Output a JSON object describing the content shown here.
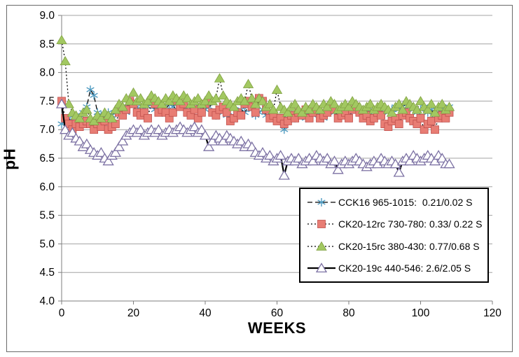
{
  "chart_data": {
    "type": "line-scatter",
    "title": "",
    "xlabel": "WEEKS",
    "ylabel": "pH",
    "xlim": [
      0,
      120
    ],
    "ylim": [
      4.0,
      9.0
    ],
    "x_ticks": [
      "0",
      "20",
      "40",
      "60",
      "80",
      "100",
      "120"
    ],
    "y_ticks": [
      "4.0",
      "4.5",
      "5.0",
      "5.5",
      "6.0",
      "6.5",
      "7.0",
      "7.5",
      "8.0",
      "8.5",
      "9.0"
    ],
    "grid": "horizontal",
    "legend_position": "inside lower-right",
    "x_start": 0,
    "x_step": 1,
    "colors": {
      "gridline": "#a3a3a3",
      "axis": "#7f7f7f",
      "line": "#000000"
    },
    "series": [
      {
        "name": "CCK16 965-1015:  0.21/0.02 S",
        "marker": "asterisk",
        "marker_color": "#4f9bc1",
        "marker_border": "#4f9bc1",
        "line_style": "dashed",
        "line_color": "#000000",
        "values": [
          7.1,
          7.15,
          7.2,
          7.1,
          7.25,
          7.2,
          7.3,
          7.4,
          7.7,
          7.6,
          7.3,
          7.25,
          7.2,
          7.3,
          7.25,
          7.3,
          7.35,
          7.4,
          7.3,
          7.45,
          7.5,
          7.4,
          7.35,
          7.3,
          7.4,
          7.45,
          7.35,
          7.4,
          7.3,
          7.35,
          7.45,
          7.4,
          7.5,
          7.45,
          7.4,
          7.35,
          7.3,
          7.4,
          7.35,
          7.3,
          7.35,
          7.4,
          7.3,
          7.25,
          7.35,
          7.3,
          7.25,
          7.2,
          7.25,
          7.3,
          7.35,
          7.3,
          7.4,
          7.35,
          7.25,
          7.3,
          7.35,
          7.25,
          7.2,
          7.25,
          7.2,
          7.15,
          7.0,
          7.2,
          7.25,
          7.2,
          7.3,
          7.25,
          7.2,
          7.3,
          7.25,
          7.3,
          7.25,
          7.2,
          7.3,
          7.35,
          7.3,
          7.25,
          7.3,
          7.35,
          7.3,
          7.35,
          7.4,
          7.3,
          7.25,
          7.3,
          7.35,
          7.3,
          7.35,
          7.4,
          7.35,
          7.3,
          7.35,
          7.4,
          7.35,
          7.4,
          7.45,
          7.4,
          7.35,
          7.3,
          7.35,
          7.4,
          7.3,
          7.35,
          7.25,
          7.3,
          7.4,
          7.35,
          7.4
        ]
      },
      {
        "name": "CK20-12rc 730-780: 0.33/ 0.22 S",
        "marker": "square",
        "marker_color": "#e87d74",
        "marker_border": "#c0504d",
        "line_style": "dotted",
        "line_color": "#000000",
        "values": [
          7.5,
          7.2,
          7.1,
          7.0,
          7.1,
          7.05,
          7.1,
          7.15,
          7.1,
          7.0,
          7.1,
          7.05,
          7.15,
          7.0,
          7.05,
          7.1,
          7.3,
          7.25,
          7.35,
          7.5,
          7.45,
          7.3,
          7.25,
          7.3,
          7.2,
          7.5,
          7.45,
          7.3,
          7.35,
          7.3,
          7.2,
          7.3,
          7.5,
          7.4,
          7.45,
          7.3,
          7.25,
          7.35,
          7.2,
          7.3,
          7.45,
          7.5,
          7.3,
          7.25,
          7.35,
          7.4,
          7.3,
          7.15,
          7.2,
          7.3,
          7.25,
          7.45,
          7.5,
          7.4,
          7.3,
          7.55,
          7.5,
          7.35,
          7.2,
          7.25,
          7.15,
          7.2,
          7.1,
          7.15,
          7.25,
          7.2,
          7.3,
          7.25,
          7.35,
          7.2,
          7.3,
          7.35,
          7.2,
          7.25,
          7.3,
          7.4,
          7.35,
          7.2,
          7.25,
          7.3,
          7.2,
          7.35,
          7.4,
          7.3,
          7.2,
          7.25,
          7.15,
          7.2,
          7.3,
          7.25,
          7.1,
          7.05,
          7.15,
          7.2,
          7.1,
          7.25,
          7.3,
          7.2,
          7.15,
          7.1,
          7.2,
          7.0,
          7.1,
          7.15,
          7.0,
          7.2,
          7.25,
          7.2,
          7.3
        ]
      },
      {
        "name": "CK20-15rc 380-430: 0.77/0.68 S",
        "marker": "triangle",
        "marker_color": "#a2c861",
        "marker_border": "#81a143",
        "line_style": "dotted",
        "line_color": "#000000",
        "values": [
          8.57,
          8.2,
          7.45,
          7.3,
          7.25,
          7.2,
          7.3,
          7.35,
          7.2,
          7.15,
          7.25,
          7.2,
          7.3,
          7.25,
          7.2,
          7.35,
          7.45,
          7.4,
          7.55,
          7.5,
          7.65,
          7.5,
          7.55,
          7.45,
          7.5,
          7.6,
          7.55,
          7.5,
          7.45,
          7.55,
          7.5,
          7.6,
          7.55,
          7.5,
          7.6,
          7.55,
          7.45,
          7.5,
          7.55,
          7.45,
          7.5,
          7.6,
          7.5,
          7.55,
          7.9,
          7.6,
          7.5,
          7.45,
          7.4,
          7.5,
          7.55,
          7.5,
          7.8,
          7.55,
          7.45,
          7.55,
          7.5,
          7.4,
          7.45,
          7.35,
          7.7,
          7.4,
          7.35,
          7.3,
          7.4,
          7.45,
          7.35,
          7.3,
          7.4,
          7.35,
          7.45,
          7.4,
          7.35,
          7.45,
          7.4,
          7.5,
          7.45,
          7.35,
          7.4,
          7.45,
          7.4,
          7.5,
          7.45,
          7.4,
          7.35,
          7.4,
          7.45,
          7.35,
          7.4,
          7.45,
          7.4,
          7.35,
          7.3,
          7.4,
          7.45,
          7.35,
          7.5,
          7.45,
          7.4,
          7.35,
          7.5,
          7.4,
          7.35,
          7.45,
          7.3,
          7.4,
          7.45,
          7.35,
          7.4
        ]
      },
      {
        "name": "CK20-19c 440-546: 2.6/2.05 S",
        "marker": "open-triangle",
        "marker_color": "#ffffff",
        "marker_border": "#7c71a3",
        "line_style": "solid",
        "line_color": "#000000",
        "values": [
          7.45,
          7.0,
          6.9,
          6.95,
          6.85,
          6.8,
          6.7,
          6.75,
          6.65,
          6.6,
          6.55,
          6.6,
          6.5,
          6.45,
          6.55,
          6.6,
          6.7,
          6.8,
          6.9,
          6.95,
          7.0,
          6.95,
          7.0,
          6.9,
          6.95,
          7.0,
          6.95,
          7.0,
          6.9,
          6.95,
          7.0,
          6.95,
          7.0,
          7.05,
          7.0,
          6.95,
          7.0,
          7.05,
          6.95,
          7.0,
          6.9,
          6.7,
          6.8,
          6.9,
          6.85,
          6.8,
          6.9,
          6.85,
          6.8,
          6.75,
          6.8,
          6.7,
          6.75,
          6.7,
          6.6,
          6.55,
          6.6,
          6.5,
          6.55,
          6.45,
          6.5,
          6.55,
          6.2,
          6.45,
          6.5,
          6.45,
          6.5,
          6.4,
          6.45,
          6.5,
          6.45,
          6.55,
          6.5,
          6.45,
          6.5,
          6.4,
          6.45,
          6.3,
          6.4,
          6.45,
          6.4,
          6.45,
          6.5,
          6.45,
          6.4,
          6.35,
          6.4,
          6.45,
          6.4,
          6.5,
          6.45,
          6.4,
          6.45,
          6.4,
          6.25,
          6.45,
          6.5,
          6.45,
          6.55,
          6.5,
          6.45,
          6.5,
          6.55,
          6.5,
          6.45,
          6.55,
          6.5,
          6.4,
          6.4
        ]
      }
    ]
  }
}
